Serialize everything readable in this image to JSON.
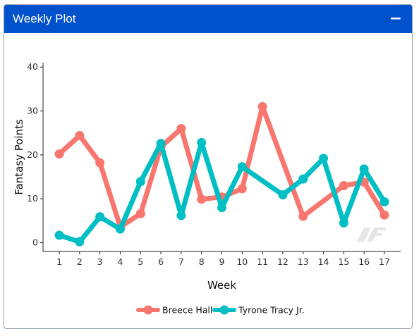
{
  "panel": {
    "title": "Weekly Plot",
    "collapse_label": "−"
  },
  "chart_data": {
    "type": "line",
    "xlabel": "Week",
    "ylabel": "Fantasy Points",
    "ylim": [
      -2,
      41
    ],
    "xlim": [
      0.2,
      17.8
    ],
    "x_ticks": [
      1,
      2,
      3,
      4,
      5,
      6,
      7,
      8,
      9,
      10,
      11,
      12,
      13,
      14,
      15,
      16,
      17
    ],
    "y_ticks": [
      0,
      10,
      20,
      30,
      40
    ],
    "grid": false,
    "legend_position": "bottom",
    "series": [
      {
        "name": "Breece Hall",
        "color": "#f8766d",
        "x": [
          1,
          2,
          3,
          4,
          5,
          6,
          7,
          8,
          9,
          10,
          11,
          13,
          15,
          16,
          17
        ],
        "y": [
          20.2,
          24.4,
          18.2,
          3.6,
          6.6,
          21.8,
          26.0,
          9.9,
          10.4,
          12.3,
          31.0,
          6.0,
          13.0,
          13.8,
          6.3
        ]
      },
      {
        "name": "Tyrone Tracy Jr.",
        "color": "#00bfc4",
        "x": [
          1,
          2,
          3,
          4,
          5,
          6,
          7,
          8,
          9,
          10,
          12,
          13,
          14,
          15,
          16,
          17
        ],
        "y": [
          1.7,
          0.2,
          5.9,
          3.1,
          13.9,
          22.6,
          6.2,
          22.8,
          8.0,
          17.3,
          10.9,
          14.5,
          19.2,
          4.5,
          16.8,
          9.3
        ]
      }
    ]
  }
}
